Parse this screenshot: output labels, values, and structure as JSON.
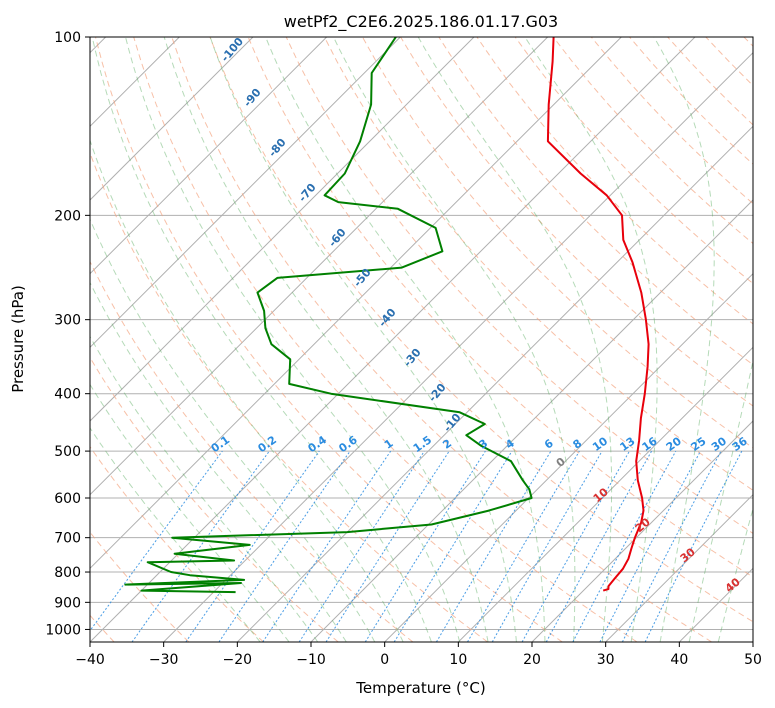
{
  "chart_data": {
    "type": "line",
    "title": "wetPf2_C2E6.2025.186.01.17.G03",
    "xlabel": "Temperature (°C)",
    "ylabel": "Pressure (hPa)",
    "xlim": [
      -40,
      50
    ],
    "ylim": [
      1050,
      100
    ],
    "y_scale": "log",
    "grid": true,
    "x_ticks": [
      -40,
      -30,
      -20,
      -10,
      0,
      10,
      20,
      30,
      40,
      50
    ],
    "y_ticks": [
      100,
      200,
      300,
      400,
      500,
      600,
      700,
      800,
      900,
      1000
    ],
    "skew_degrees": 45,
    "colors": {
      "temperature": "#e8000b",
      "dewpoint": "#008000",
      "dry_adiabat": "#f4a582",
      "moist_adiabat": "#5aae61",
      "mixing_ratio": "#2a8ce0",
      "isotherm": "#808080"
    },
    "series": [
      {
        "key": "temperature",
        "points": [
          [
            22.7,
            860
          ],
          [
            23.2,
            855
          ],
          [
            22.8,
            845
          ],
          [
            22.6,
            820
          ],
          [
            22.4,
            790
          ],
          [
            21.8,
            760
          ],
          [
            20.8,
            730
          ],
          [
            19.8,
            700
          ],
          [
            18.6,
            660
          ],
          [
            17.3,
            630
          ],
          [
            15.4,
            600
          ],
          [
            12.4,
            560
          ],
          [
            9.6,
            520
          ],
          [
            7.2,
            480
          ],
          [
            4.4,
            440
          ],
          [
            1.6,
            400
          ],
          [
            -1.7,
            360
          ],
          [
            -4.6,
            330
          ],
          [
            -8.3,
            300
          ],
          [
            -12.6,
            270
          ],
          [
            -17.9,
            240
          ],
          [
            -22.2,
            220
          ],
          [
            -25.7,
            200
          ],
          [
            -30.5,
            185
          ],
          [
            -37.0,
            170
          ],
          [
            -45.8,
            150
          ],
          [
            -50.7,
            130
          ],
          [
            -56.0,
            110
          ],
          [
            -59.2,
            100
          ]
        ]
      },
      {
        "key": "dewpoint",
        "points": [
          [
            -27.0,
            865
          ],
          [
            -40.0,
            860
          ],
          [
            -27.5,
            835
          ],
          [
            -43.0,
            840
          ],
          [
            -27.5,
            825
          ],
          [
            -35.5,
            810
          ],
          [
            -38.5,
            800
          ],
          [
            -43.0,
            770
          ],
          [
            -31.5,
            765
          ],
          [
            -40.5,
            745
          ],
          [
            -31.5,
            720
          ],
          [
            -43.0,
            700
          ],
          [
            -20.0,
            685
          ],
          [
            -9.6,
            665
          ],
          [
            -3.7,
            630
          ],
          [
            0.4,
            600
          ],
          [
            -1.1,
            580
          ],
          [
            -3.2,
            560
          ],
          [
            -7.4,
            520
          ],
          [
            -13.5,
            490
          ],
          [
            -17.0,
            470
          ],
          [
            -16.0,
            450
          ],
          [
            -21.0,
            430
          ],
          [
            -41.0,
            400
          ],
          [
            -48.0,
            385
          ],
          [
            -51.2,
            350
          ],
          [
            -55.8,
            330
          ],
          [
            -58.8,
            310
          ],
          [
            -61.3,
            290
          ],
          [
            -64.7,
            270
          ],
          [
            -64.0,
            255
          ],
          [
            -48.5,
            245
          ],
          [
            -45.2,
            230
          ],
          [
            -49.3,
            210
          ],
          [
            -57.0,
            195
          ],
          [
            -66.0,
            190
          ],
          [
            -68.8,
            185
          ],
          [
            -69.0,
            170
          ],
          [
            -71.3,
            150
          ],
          [
            -74.8,
            130
          ],
          [
            -79.0,
            115
          ],
          [
            -80.6,
            100
          ]
        ]
      }
    ],
    "mixing_ratio_labels": [
      "0.1",
      "0.2",
      "0.4",
      "0.6",
      "1",
      "1.5",
      "2",
      "3",
      "4",
      "6",
      "8",
      "10",
      "13",
      "16",
      "20",
      "25",
      "30",
      "36"
    ],
    "dry_adiabat_labels": [
      "-100",
      "-90",
      "-80",
      "-70",
      "-60",
      "-50",
      "-40",
      "-30",
      "-20",
      "-10"
    ],
    "moist_adiabat_labels": [
      "0",
      "10",
      "20",
      "30",
      "40"
    ]
  }
}
